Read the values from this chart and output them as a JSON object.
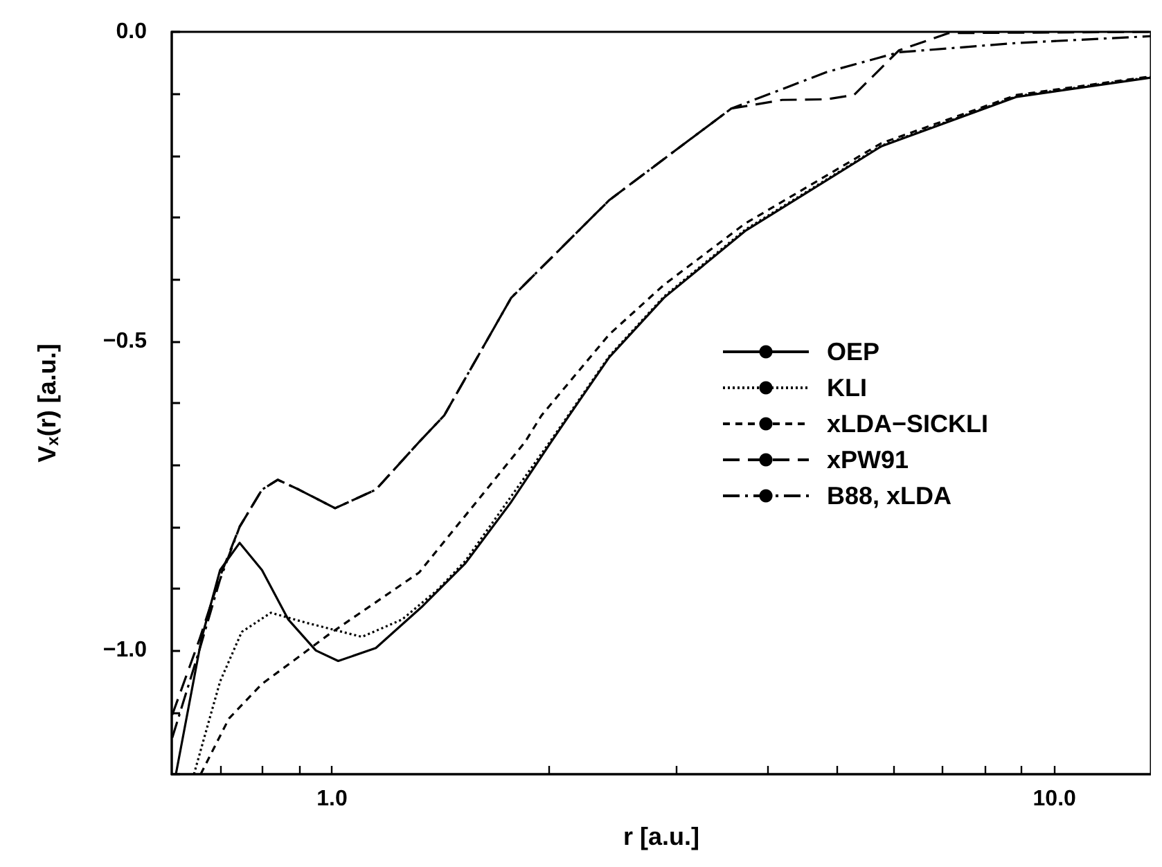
{
  "chart_data": {
    "type": "line",
    "xlabel": "r [a.u.]",
    "ylabel": "V$_{x}$(r) [a.u.]",
    "log": "x",
    "grid": false,
    "legend": "right",
    "marker": "none",
    "xlim": [
      0.6,
      13.6
    ],
    "ylim": [
      -1.2,
      0
    ],
    "xticks": [
      {
        "value": 0.7,
        "label": null
      },
      {
        "value": 0.8,
        "label": null
      },
      {
        "value": 0.9,
        "label": null
      },
      {
        "value": 1,
        "label": "1.0"
      },
      {
        "value": 2,
        "label": null
      },
      {
        "value": 3,
        "label": null
      },
      {
        "value": 4,
        "label": null
      },
      {
        "value": 5,
        "label": null
      },
      {
        "value": 6,
        "label": null
      },
      {
        "value": 7,
        "label": null
      },
      {
        "value": 8,
        "label": null
      },
      {
        "value": 9,
        "label": null
      },
      {
        "value": 10,
        "label": "10.0"
      }
    ],
    "yticks": [
      {
        "value": -1.2,
        "label": null
      },
      {
        "value": -1.1,
        "label": null
      },
      {
        "value": -1,
        "label": "−1.0"
      },
      {
        "value": -0.9,
        "label": null
      },
      {
        "value": -0.8,
        "label": null
      },
      {
        "value": -0.7,
        "label": null
      },
      {
        "value": -0.6,
        "label": null
      },
      {
        "value": -0.5,
        "label": "−0.5"
      },
      {
        "value": -0.4,
        "label": null
      },
      {
        "value": -0.3,
        "label": null
      },
      {
        "value": -0.2,
        "label": null
      },
      {
        "value": -0.1,
        "label": null
      },
      {
        "value": 0,
        "label": "0.0"
      }
    ],
    "series": [
      {
        "name": "OEP",
        "color": "#000000",
        "line_style": "solid",
        "x": [
          0.608,
          0.66,
          0.7,
          0.745,
          0.8,
          0.87,
          0.95,
          1.02,
          1.15,
          1.33,
          1.53,
          1.77,
          2.01,
          2.13,
          2.42,
          2.88,
          3.73,
          5.76,
          8.87,
          13.6
        ],
        "values": [
          -1.2,
          -0.98,
          -0.87,
          -0.826,
          -0.87,
          -0.95,
          -1.0,
          -1.017,
          -0.996,
          -0.93,
          -0.859,
          -0.76,
          -0.663,
          -0.62,
          -0.526,
          -0.43,
          -0.322,
          -0.185,
          -0.105,
          -0.074
        ]
      },
      {
        "name": "KLI",
        "color": "#000000",
        "line_style": "dotted",
        "x": [
          0.644,
          0.7,
          0.75,
          0.823,
          0.92,
          1.1,
          1.25,
          1.4,
          1.53,
          2.01,
          2.42,
          2.88,
          3.73,
          5.76,
          8.87,
          13.6
        ],
        "values": [
          -1.2,
          -1.05,
          -0.97,
          -0.939,
          -0.955,
          -0.978,
          -0.95,
          -0.902,
          -0.855,
          -0.66,
          -0.524,
          -0.428,
          -0.32,
          -0.184,
          -0.104,
          -0.073
        ]
      },
      {
        "name": "xLDA−SICKLI",
        "color": "#000000",
        "line_style": "dashed",
        "x": [
          0.658,
          0.72,
          0.8,
          0.9,
          0.99,
          1.32,
          1.85,
          1.95,
          2.42,
          2.88,
          3.73,
          5.76,
          8.87,
          13.6
        ],
        "values": [
          -1.2,
          -1.11,
          -1.054,
          -1.01,
          -0.974,
          -0.874,
          -0.663,
          -0.62,
          -0.489,
          -0.409,
          -0.31,
          -0.18,
          -0.102,
          -0.072
        ]
      },
      {
        "name": "xPW91",
        "color": "#000000",
        "line_style": "longdash",
        "x": [
          0.601,
          0.655,
          0.7,
          0.745,
          0.8,
          0.841,
          0.9,
          1.01,
          1.15,
          1.32,
          1.43,
          1.77,
          2.42,
          3.0,
          3.57,
          4.2,
          4.84,
          5.28,
          6.09,
          7.14,
          13.6
        ],
        "values": [
          -1.104,
          -0.983,
          -0.88,
          -0.8,
          -0.74,
          -0.724,
          -0.74,
          -0.77,
          -0.74,
          -0.663,
          -0.62,
          -0.43,
          -0.272,
          -0.19,
          -0.124,
          -0.11,
          -0.109,
          -0.102,
          -0.03,
          -0.002,
          0
        ]
      },
      {
        "name": "B88, xLDA",
        "color": "#000000",
        "line_style": "dashdot",
        "x": [
          0.601,
          0.655,
          0.7,
          0.745,
          0.8,
          0.841,
          0.9,
          1.01,
          1.15,
          1.32,
          1.43,
          1.77,
          2.42,
          3.0,
          3.57,
          4.84,
          6.09,
          8.87,
          13.6
        ],
        "values": [
          -1.141,
          -1.0,
          -0.885,
          -0.8,
          -0.74,
          -0.724,
          -0.74,
          -0.77,
          -0.74,
          -0.663,
          -0.62,
          -0.43,
          -0.272,
          -0.19,
          -0.124,
          -0.065,
          -0.033,
          -0.018,
          -0.007
        ]
      }
    ]
  }
}
